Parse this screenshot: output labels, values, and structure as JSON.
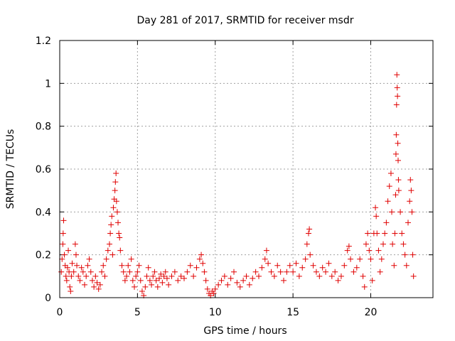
{
  "chart_data": {
    "type": "scatter",
    "title": "Day 281 of 2017, SRMTID for receiver msdr",
    "xlabel": "GPS time / hours",
    "ylabel": "SRMTID / TECUs",
    "xlim": [
      0,
      24
    ],
    "ylim": [
      0,
      1.2
    ],
    "xticks": [
      0,
      5,
      10,
      15,
      20
    ],
    "yticks": [
      0,
      0.2,
      0.4,
      0.6,
      0.8,
      1,
      1.2
    ],
    "xtick_labels": [
      "0",
      "5",
      "10",
      "15",
      "20"
    ],
    "ytick_labels": [
      "0",
      "0.2",
      "0.4",
      "0.6",
      "0.8",
      "1",
      "1.2"
    ],
    "grid": true,
    "marker": "+",
    "marker_color": "#e00000",
    "series": [
      {
        "name": "SRMTID",
        "points": [
          [
            0.1,
            0.12
          ],
          [
            0.15,
            0.18
          ],
          [
            0.2,
            0.25
          ],
          [
            0.22,
            0.3
          ],
          [
            0.25,
            0.36
          ],
          [
            0.3,
            0.2
          ],
          [
            0.35,
            0.15
          ],
          [
            0.4,
            0.1
          ],
          [
            0.45,
            0.08
          ],
          [
            0.5,
            0.14
          ],
          [
            0.55,
            0.22
          ],
          [
            0.6,
            0.12
          ],
          [
            0.65,
            0.05
          ],
          [
            0.7,
            0.03
          ],
          [
            0.75,
            0.1
          ],
          [
            0.8,
            0.16
          ],
          [
            0.9,
            0.12
          ],
          [
            1.0,
            0.25
          ],
          [
            1.05,
            0.2
          ],
          [
            1.1,
            0.15
          ],
          [
            1.2,
            0.1
          ],
          [
            1.3,
            0.08
          ],
          [
            1.4,
            0.14
          ],
          [
            1.5,
            0.12
          ],
          [
            1.6,
            0.06
          ],
          [
            1.7,
            0.1
          ],
          [
            1.8,
            0.15
          ],
          [
            1.9,
            0.18
          ],
          [
            2.0,
            0.12
          ],
          [
            2.1,
            0.08
          ],
          [
            2.2,
            0.05
          ],
          [
            2.3,
            0.1
          ],
          [
            2.4,
            0.07
          ],
          [
            2.5,
            0.04
          ],
          [
            2.6,
            0.06
          ],
          [
            2.7,
            0.12
          ],
          [
            2.8,
            0.15
          ],
          [
            2.9,
            0.1
          ],
          [
            3.0,
            0.18
          ],
          [
            3.1,
            0.22
          ],
          [
            3.2,
            0.25
          ],
          [
            3.25,
            0.3
          ],
          [
            3.3,
            0.34
          ],
          [
            3.35,
            0.38
          ],
          [
            3.4,
            0.2
          ],
          [
            3.45,
            0.42
          ],
          [
            3.5,
            0.46
          ],
          [
            3.55,
            0.5
          ],
          [
            3.58,
            0.54
          ],
          [
            3.62,
            0.58
          ],
          [
            3.65,
            0.45
          ],
          [
            3.7,
            0.4
          ],
          [
            3.75,
            0.35
          ],
          [
            3.8,
            0.3
          ],
          [
            3.85,
            0.28
          ],
          [
            3.9,
            0.22
          ],
          [
            4.0,
            0.15
          ],
          [
            4.1,
            0.12
          ],
          [
            4.2,
            0.08
          ],
          [
            4.3,
            0.1
          ],
          [
            4.4,
            0.15
          ],
          [
            4.5,
            0.12
          ],
          [
            4.6,
            0.18
          ],
          [
            4.7,
            0.08
          ],
          [
            4.8,
            0.05
          ],
          [
            4.9,
            0.1
          ],
          [
            5.0,
            0.12
          ],
          [
            5.1,
            0.15
          ],
          [
            5.2,
            0.08
          ],
          [
            5.3,
            0.03
          ],
          [
            5.4,
            0.01
          ],
          [
            5.5,
            0.05
          ],
          [
            5.6,
            0.1
          ],
          [
            5.7,
            0.14
          ],
          [
            5.8,
            0.08
          ],
          [
            5.9,
            0.06
          ],
          [
            6.0,
            0.1
          ],
          [
            6.1,
            0.12
          ],
          [
            6.2,
            0.08
          ],
          [
            6.3,
            0.05
          ],
          [
            6.4,
            0.09
          ],
          [
            6.5,
            0.11
          ],
          [
            6.6,
            0.07
          ],
          [
            6.7,
            0.1
          ],
          [
            6.8,
            0.12
          ],
          [
            6.9,
            0.09
          ],
          [
            7.0,
            0.06
          ],
          [
            7.2,
            0.1
          ],
          [
            7.4,
            0.12
          ],
          [
            7.6,
            0.08
          ],
          [
            7.8,
            0.1
          ],
          [
            8.0,
            0.09
          ],
          [
            8.2,
            0.12
          ],
          [
            8.4,
            0.15
          ],
          [
            8.6,
            0.1
          ],
          [
            8.8,
            0.14
          ],
          [
            9.0,
            0.18
          ],
          [
            9.1,
            0.2
          ],
          [
            9.2,
            0.16
          ],
          [
            9.3,
            0.12
          ],
          [
            9.4,
            0.08
          ],
          [
            9.5,
            0.04
          ],
          [
            9.6,
            0.02
          ],
          [
            9.7,
            0.01
          ],
          [
            9.8,
            0.03
          ],
          [
            9.9,
            0.02
          ],
          [
            10.0,
            0.04
          ],
          [
            10.2,
            0.06
          ],
          [
            10.4,
            0.08
          ],
          [
            10.6,
            0.1
          ],
          [
            10.8,
            0.06
          ],
          [
            11.0,
            0.09
          ],
          [
            11.2,
            0.12
          ],
          [
            11.4,
            0.07
          ],
          [
            11.6,
            0.05
          ],
          [
            11.8,
            0.08
          ],
          [
            12.0,
            0.1
          ],
          [
            12.2,
            0.06
          ],
          [
            12.4,
            0.09
          ],
          [
            12.6,
            0.12
          ],
          [
            12.8,
            0.1
          ],
          [
            13.0,
            0.14
          ],
          [
            13.2,
            0.18
          ],
          [
            13.3,
            0.22
          ],
          [
            13.4,
            0.16
          ],
          [
            13.6,
            0.12
          ],
          [
            13.8,
            0.1
          ],
          [
            14.0,
            0.15
          ],
          [
            14.2,
            0.12
          ],
          [
            14.4,
            0.08
          ],
          [
            14.6,
            0.12
          ],
          [
            14.8,
            0.15
          ],
          [
            15.0,
            0.12
          ],
          [
            15.2,
            0.16
          ],
          [
            15.4,
            0.1
          ],
          [
            15.6,
            0.14
          ],
          [
            15.8,
            0.18
          ],
          [
            15.9,
            0.25
          ],
          [
            16.0,
            0.3
          ],
          [
            16.05,
            0.32
          ],
          [
            16.1,
            0.2
          ],
          [
            16.3,
            0.15
          ],
          [
            16.5,
            0.12
          ],
          [
            16.7,
            0.1
          ],
          [
            16.9,
            0.14
          ],
          [
            17.1,
            0.12
          ],
          [
            17.3,
            0.16
          ],
          [
            17.5,
            0.1
          ],
          [
            17.7,
            0.12
          ],
          [
            17.9,
            0.08
          ],
          [
            18.1,
            0.1
          ],
          [
            18.3,
            0.15
          ],
          [
            18.5,
            0.22
          ],
          [
            18.6,
            0.24
          ],
          [
            18.7,
            0.18
          ],
          [
            18.9,
            0.12
          ],
          [
            19.1,
            0.14
          ],
          [
            19.3,
            0.18
          ],
          [
            19.5,
            0.1
          ],
          [
            19.6,
            0.05
          ],
          [
            19.7,
            0.25
          ],
          [
            19.8,
            0.3
          ],
          [
            19.9,
            0.22
          ],
          [
            20.0,
            0.18
          ],
          [
            20.1,
            0.08
          ],
          [
            20.2,
            0.3
          ],
          [
            20.3,
            0.42
          ],
          [
            20.35,
            0.38
          ],
          [
            20.4,
            0.3
          ],
          [
            20.5,
            0.22
          ],
          [
            20.6,
            0.12
          ],
          [
            20.7,
            0.18
          ],
          [
            20.8,
            0.25
          ],
          [
            20.9,
            0.3
          ],
          [
            21.0,
            0.35
          ],
          [
            21.1,
            0.45
          ],
          [
            21.2,
            0.52
          ],
          [
            21.3,
            0.58
          ],
          [
            21.35,
            0.4
          ],
          [
            21.4,
            0.25
          ],
          [
            21.5,
            0.15
          ],
          [
            21.55,
            0.3
          ],
          [
            21.6,
            0.48
          ],
          [
            21.62,
            0.67
          ],
          [
            21.64,
            0.76
          ],
          [
            21.66,
            0.9
          ],
          [
            21.68,
            1.04
          ],
          [
            21.7,
            0.98
          ],
          [
            21.72,
            0.94
          ],
          [
            21.74,
            0.72
          ],
          [
            21.76,
            0.64
          ],
          [
            21.78,
            0.55
          ],
          [
            21.8,
            0.5
          ],
          [
            21.9,
            0.4
          ],
          [
            22.0,
            0.3
          ],
          [
            22.1,
            0.25
          ],
          [
            22.2,
            0.2
          ],
          [
            22.3,
            0.15
          ],
          [
            22.4,
            0.35
          ],
          [
            22.5,
            0.45
          ],
          [
            22.55,
            0.55
          ],
          [
            22.6,
            0.5
          ],
          [
            22.65,
            0.4
          ],
          [
            22.7,
            0.2
          ],
          [
            22.75,
            0.1
          ]
        ]
      }
    ]
  }
}
